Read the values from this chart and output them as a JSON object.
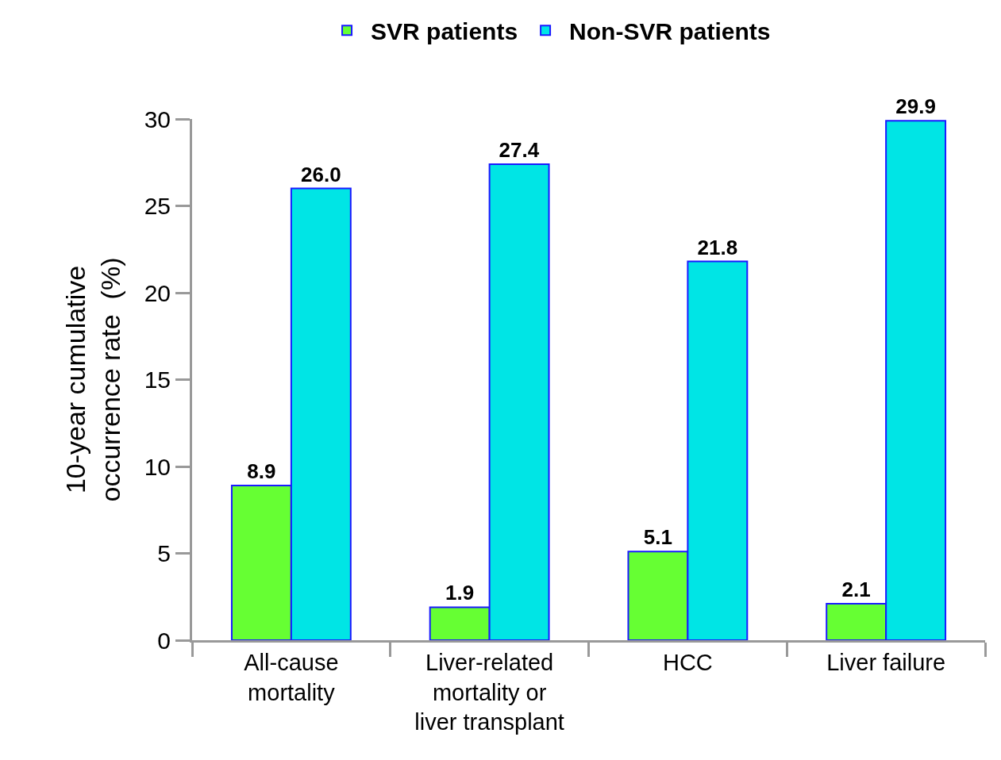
{
  "chart_data": {
    "type": "bar",
    "ylabel": "10-year cumulative occurrence rate  (%)",
    "categories": [
      "All-cause mortality",
      "Liver-related mortality or liver transplant",
      "HCC",
      "Liver failure"
    ],
    "series": [
      {
        "name": "SVR patients",
        "color": "#66ff33",
        "values": [
          8.9,
          1.9,
          5.1,
          2.1
        ],
        "value_labels": [
          "8.9",
          "1.9",
          "5.1",
          "2.1"
        ]
      },
      {
        "name": "Non-SVR patients",
        "color": "#00e5e5",
        "values": [
          26.0,
          27.4,
          21.8,
          29.9
        ],
        "value_labels": [
          "26.0",
          "27.4",
          "21.8",
          "29.9"
        ]
      }
    ],
    "ylim": [
      0,
      30
    ],
    "yticks": [
      0,
      5,
      10,
      15,
      20,
      25,
      30
    ],
    "grid": false,
    "legend": "top"
  }
}
